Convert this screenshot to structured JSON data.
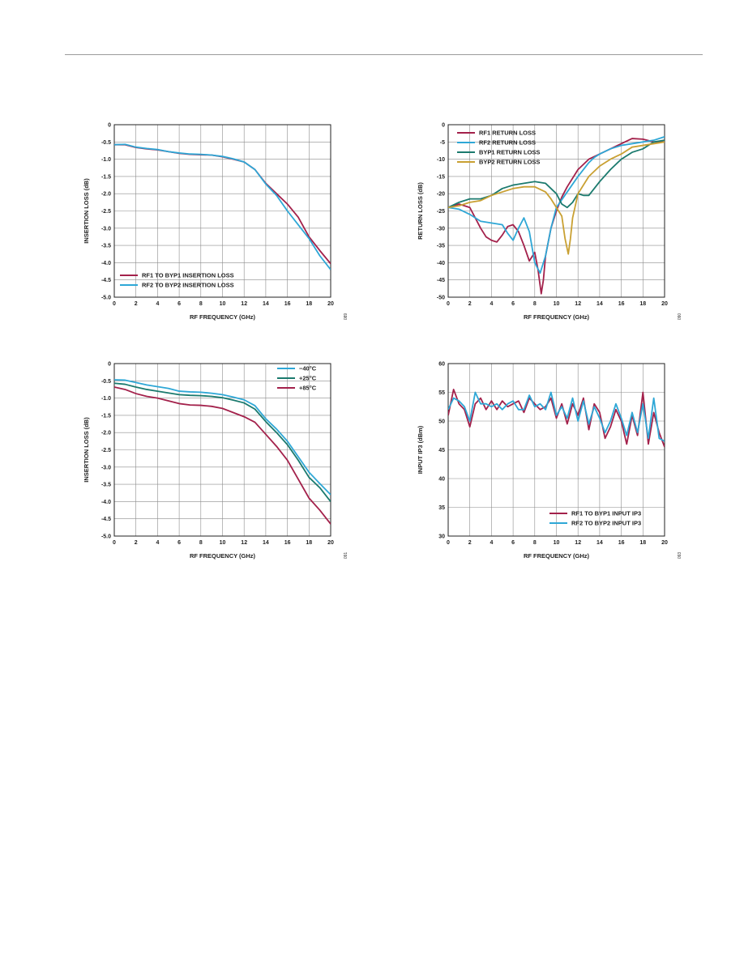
{
  "charts": [
    {
      "id": "il-vs-freq",
      "figure_id": "089",
      "chart_data": {
        "type": "line",
        "xlabel": "RF FREQUENCY (GHz)",
        "ylabel": "INSERTION LOSS (dB)",
        "xlim": [
          0,
          20
        ],
        "ylim": [
          -5.0,
          0
        ],
        "xticks": [
          0,
          2,
          4,
          6,
          8,
          10,
          12,
          14,
          16,
          18,
          20
        ],
        "yticks": [
          0,
          -0.5,
          -1.0,
          -1.5,
          -2.0,
          -2.5,
          -3.0,
          -3.5,
          -4.0,
          -4.5,
          -5.0
        ],
        "xtick_labels": [
          "0",
          "2",
          "4",
          "6",
          "8",
          "10",
          "12",
          "14",
          "16",
          "18",
          "20"
        ],
        "ytick_labels": [
          "0",
          "-0.5",
          "-1.0",
          "-1.5",
          "-2.0",
          "-2.5",
          "-3.0",
          "-3.5",
          "-4.0",
          "-4.5",
          "-5.0"
        ],
        "grid": true,
        "legend_position": "bottom-left",
        "series": [
          {
            "name": "RF1 TO BYP1 INSERTION LOSS",
            "color": "#a3214b",
            "x": [
              0,
              1,
              2,
              3,
              4,
              5,
              6,
              7,
              8,
              9,
              10,
              11,
              12,
              13,
              14,
              15,
              16,
              17,
              18,
              19,
              20
            ],
            "y": [
              -0.58,
              -0.58,
              -0.66,
              -0.7,
              -0.73,
              -0.78,
              -0.83,
              -0.86,
              -0.87,
              -0.88,
              -0.93,
              -1.0,
              -1.08,
              -1.3,
              -1.7,
              -2.0,
              -2.3,
              -2.68,
              -3.25,
              -3.65,
              -4.03
            ]
          },
          {
            "name": "RF2 TO BYP2 INSERTION LOSS",
            "color": "#2ea7d6",
            "x": [
              0,
              1,
              2,
              3,
              4,
              5,
              6,
              7,
              8,
              9,
              10,
              11,
              12,
              13,
              14,
              15,
              16,
              17,
              18,
              19,
              20
            ],
            "y": [
              -0.58,
              -0.57,
              -0.65,
              -0.69,
              -0.72,
              -0.78,
              -0.82,
              -0.85,
              -0.86,
              -0.88,
              -0.92,
              -0.99,
              -1.08,
              -1.3,
              -1.72,
              -2.05,
              -2.5,
              -2.9,
              -3.3,
              -3.8,
              -4.2
            ]
          }
        ]
      }
    },
    {
      "id": "rl-vs-freq",
      "figure_id": "090",
      "chart_data": {
        "type": "line",
        "xlabel": "RF FREQUENCY (GHz)",
        "ylabel": "RETURN LOSS (dB)",
        "xlim": [
          0,
          20
        ],
        "ylim": [
          -50,
          0
        ],
        "xticks": [
          0,
          2,
          4,
          6,
          8,
          10,
          12,
          14,
          16,
          18,
          20
        ],
        "yticks": [
          0,
          -5,
          -10,
          -15,
          -20,
          -25,
          -30,
          -35,
          -40,
          -45,
          -50
        ],
        "xtick_labels": [
          "0",
          "2",
          "4",
          "6",
          "8",
          "10",
          "12",
          "14",
          "16",
          "18",
          "20"
        ],
        "ytick_labels": [
          "0",
          "-5",
          "-10",
          "-15",
          "-20",
          "-25",
          "-30",
          "-35",
          "-40",
          "-45",
          "-50"
        ],
        "grid": true,
        "legend_position": "top-left",
        "series": [
          {
            "name": "RF1 RETURN LOSS",
            "color": "#a3214b",
            "x": [
              0,
              1,
              2,
              3,
              3.5,
              4,
              4.5,
              5,
              5.5,
              6,
              6.5,
              7,
              7.5,
              8,
              8.3,
              8.6,
              8.8,
              9,
              9.5,
              10,
              10.5,
              11,
              12,
              13,
              14,
              15,
              16,
              17,
              18,
              19,
              20
            ],
            "y": [
              -24,
              -23,
              -24,
              -30,
              -32.5,
              -33.5,
              -34,
              -32,
              -29.5,
              -29,
              -31,
              -35,
              -39.5,
              -37,
              -42,
              -49,
              -45,
              -38,
              -30,
              -25,
              -21,
              -18,
              -13,
              -10,
              -8.5,
              -7,
              -5.5,
              -4,
              -4.2,
              -5,
              -5
            ]
          },
          {
            "name": "RF2 RETURN LOSS",
            "color": "#2ea7d6",
            "x": [
              0,
              1,
              2,
              3,
              4,
              5,
              5.5,
              6,
              6.5,
              7,
              7.5,
              8,
              8.5,
              9,
              9.5,
              10,
              11,
              12,
              13,
              13.5,
              14,
              15,
              16,
              17,
              18,
              19,
              20
            ],
            "y": [
              -24,
              -24.5,
              -26,
              -28,
              -28.5,
              -29,
              -31.5,
              -33.5,
              -30,
              -27,
              -31,
              -40,
              -43,
              -38,
              -30,
              -24,
              -19.5,
              -15,
              -11,
              -9.5,
              -8.5,
              -7,
              -6,
              -5.5,
              -5,
              -4.5,
              -3.5
            ]
          },
          {
            "name": "BYP1 RETURN LOSS",
            "color": "#1b7a6e",
            "x": [
              0,
              1,
              2,
              3,
              4,
              5,
              6,
              7,
              8,
              9,
              10,
              10.5,
              11,
              11.5,
              12,
              12.5,
              13,
              14,
              15,
              16,
              17,
              18,
              19,
              20
            ],
            "y": [
              -24,
              -22.5,
              -21.5,
              -21.5,
              -20.5,
              -18.5,
              -17.5,
              -17,
              -16.5,
              -17,
              -20,
              -23,
              -24,
              -22.5,
              -20,
              -20.5,
              -20.5,
              -16.5,
              -13,
              -10,
              -8,
              -7,
              -5,
              -4.5
            ]
          },
          {
            "name": "BYP2 RETURN LOSS",
            "color": "#c9a032",
            "x": [
              0,
              1,
              2,
              3,
              4,
              5,
              6,
              7,
              8,
              9,
              9.5,
              10,
              10.5,
              10.8,
              11.1,
              11.3,
              11.5,
              12,
              13,
              14,
              15,
              16,
              17,
              18,
              19,
              20
            ],
            "y": [
              -24,
              -23.5,
              -22.5,
              -22,
              -20.5,
              -19.5,
              -18.5,
              -18,
              -18,
              -19.5,
              -21.5,
              -24,
              -26.5,
              -33,
              -37.5,
              -33,
              -27,
              -20,
              -15,
              -12,
              -10,
              -8.5,
              -6.5,
              -6,
              -5.5,
              -5
            ]
          }
        ]
      }
    },
    {
      "id": "il-vs-temp",
      "figure_id": "091",
      "chart_data": {
        "type": "line",
        "xlabel": "RF FREQUENCY (GHz)",
        "ylabel": "INSERTION LOSS (dB)",
        "xlim": [
          0,
          20
        ],
        "ylim": [
          -5.0,
          0
        ],
        "xticks": [
          0,
          2,
          4,
          6,
          8,
          10,
          12,
          14,
          16,
          18,
          20
        ],
        "yticks": [
          0,
          -0.5,
          -1.0,
          -1.5,
          -2.0,
          -2.5,
          -3.0,
          -3.5,
          -4.0,
          -4.5,
          -5.0
        ],
        "xtick_labels": [
          "0",
          "2",
          "4",
          "6",
          "8",
          "10",
          "12",
          "14",
          "16",
          "18",
          "20"
        ],
        "ytick_labels": [
          "0",
          "-0.5",
          "-1.0",
          "-1.5",
          "-2.0",
          "-2.5",
          "-3.0",
          "-3.5",
          "-4.0",
          "-4.5",
          "-5.0"
        ],
        "grid": true,
        "legend_position": "top-right",
        "series": [
          {
            "name": "−40°C",
            "color": "#2ea7d6",
            "x": [
              0,
              1,
              2,
              3,
              4,
              5,
              6,
              7,
              8,
              9,
              10,
              11,
              12,
              13,
              14,
              15,
              16,
              17,
              18,
              19,
              20
            ],
            "y": [
              -0.47,
              -0.48,
              -0.55,
              -0.62,
              -0.67,
              -0.72,
              -0.8,
              -0.82,
              -0.83,
              -0.86,
              -0.9,
              -0.97,
              -1.05,
              -1.22,
              -1.6,
              -1.9,
              -2.25,
              -2.7,
              -3.15,
              -3.48,
              -3.8
            ]
          },
          {
            "name": "+25°C",
            "color": "#1b7a6e",
            "x": [
              0,
              1,
              2,
              3,
              4,
              5,
              6,
              7,
              8,
              9,
              10,
              11,
              12,
              13,
              14,
              15,
              16,
              17,
              18,
              19,
              20
            ],
            "y": [
              -0.57,
              -0.6,
              -0.68,
              -0.75,
              -0.8,
              -0.85,
              -0.9,
              -0.92,
              -0.93,
              -0.95,
              -0.99,
              -1.06,
              -1.14,
              -1.32,
              -1.68,
              -2.0,
              -2.35,
              -2.8,
              -3.3,
              -3.6,
              -4.0
            ]
          },
          {
            "name": "+85°C",
            "color": "#a3214b",
            "x": [
              0,
              1,
              2,
              3,
              4,
              5,
              6,
              7,
              8,
              9,
              10,
              11,
              12,
              13,
              14,
              15,
              16,
              17,
              18,
              19,
              20
            ],
            "y": [
              -0.68,
              -0.75,
              -0.87,
              -0.95,
              -1.0,
              -1.08,
              -1.16,
              -1.2,
              -1.21,
              -1.24,
              -1.3,
              -1.42,
              -1.54,
              -1.7,
              -2.05,
              -2.4,
              -2.8,
              -3.35,
              -3.9,
              -4.25,
              -4.65
            ]
          }
        ]
      }
    },
    {
      "id": "ip3-vs-freq",
      "figure_id": "093",
      "chart_data": {
        "type": "line",
        "xlabel": "RF FREQUENCY (GHz)",
        "ylabel": "INPUT IP3 (dBm)",
        "xlim": [
          0,
          20
        ],
        "ylim": [
          30,
          60
        ],
        "xticks": [
          0,
          2,
          4,
          6,
          8,
          10,
          12,
          14,
          16,
          18,
          20
        ],
        "yticks": [
          60,
          55,
          50,
          45,
          40,
          35,
          30
        ],
        "xtick_labels": [
          "0",
          "2",
          "4",
          "6",
          "8",
          "10",
          "12",
          "14",
          "16",
          "18",
          "20"
        ],
        "ytick_labels": [
          "60",
          "55",
          "50",
          "45",
          "40",
          "35",
          "30"
        ],
        "grid": true,
        "legend_position": "bottom-right",
        "series": [
          {
            "name": "RF1 TO BYP1 INPUT IP3",
            "color": "#a3214b",
            "x": [
              0,
              0.5,
              1,
              1.5,
              2,
              2.5,
              3,
              3.5,
              4,
              4.5,
              5,
              5.5,
              6,
              6.5,
              7,
              7.5,
              8,
              8.5,
              9,
              9.5,
              10,
              10.5,
              11,
              11.5,
              12,
              12.5,
              13,
              13.5,
              14,
              14.5,
              15,
              15.5,
              16,
              16.5,
              17,
              17.5,
              18,
              18.5,
              19,
              19.5,
              20
            ],
            "y": [
              51,
              55.5,
              53,
              52,
              49,
              53,
              54,
              52,
              53.5,
              52,
              53.5,
              52.5,
              53,
              53.5,
              51.5,
              54,
              53,
              52,
              52.5,
              54,
              50.5,
              53,
              49.5,
              53,
              51,
              54,
              48.5,
              53,
              51.5,
              47,
              49,
              52,
              50,
              46,
              51,
              47.5,
              55,
              46,
              51.5,
              48,
              45.5
            ]
          },
          {
            "name": "RF2 TO BYP2 INPUT IP3",
            "color": "#2ea7d6",
            "x": [
              0,
              0.5,
              1,
              1.5,
              2,
              2.5,
              3,
              3.5,
              4,
              4.5,
              5,
              5.5,
              6,
              6.5,
              7,
              7.5,
              8,
              8.5,
              9,
              9.5,
              10,
              10.5,
              11,
              11.5,
              12,
              12.5,
              13,
              13.5,
              14,
              14.5,
              15,
              15.5,
              16,
              16.5,
              17,
              17.5,
              18,
              18.5,
              19,
              19.5,
              20
            ],
            "y": [
              52,
              54,
              53.5,
              52.5,
              50,
              55,
              53,
              53,
              52.5,
              53,
              52,
              53,
              53.5,
              52,
              52,
              54.5,
              52.5,
              53,
              52,
              55,
              51,
              52.5,
              50.5,
              54,
              50,
              53.5,
              49.5,
              52.5,
              50.5,
              48,
              50,
              53,
              50.5,
              47.5,
              51.5,
              48,
              53,
              47,
              54,
              47,
              46.5
            ]
          }
        ]
      }
    }
  ]
}
